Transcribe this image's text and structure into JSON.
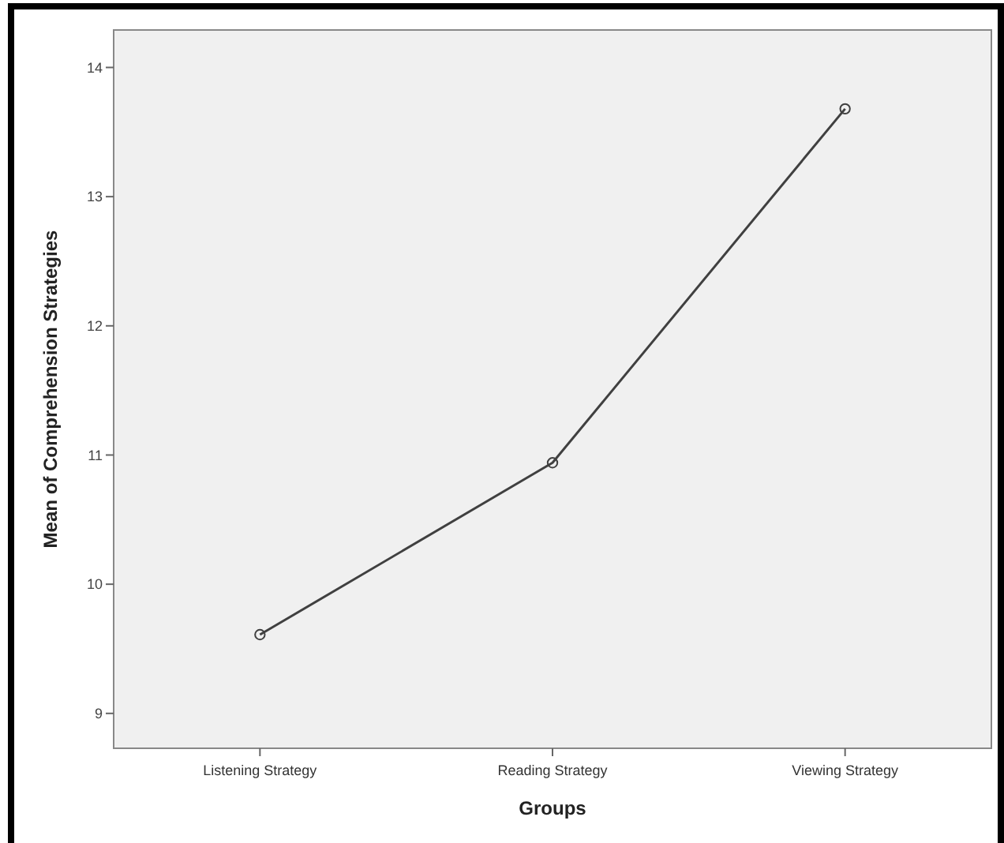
{
  "chart_data": {
    "type": "line",
    "xlabel": "Groups",
    "ylabel": "Mean of Comprehension Strategies",
    "categories": [
      "Listening Strategy",
      "Reading Strategy",
      "Viewing Strategy"
    ],
    "series": [
      {
        "color": "#404040",
        "values": [
          9.61,
          10.94,
          13.68
        ]
      }
    ],
    "ylim": [
      8.73,
      14.29
    ],
    "yticks": [
      9,
      10,
      11,
      12,
      13,
      14
    ],
    "marker": "circle",
    "line_style": "solid",
    "grid": false
  }
}
